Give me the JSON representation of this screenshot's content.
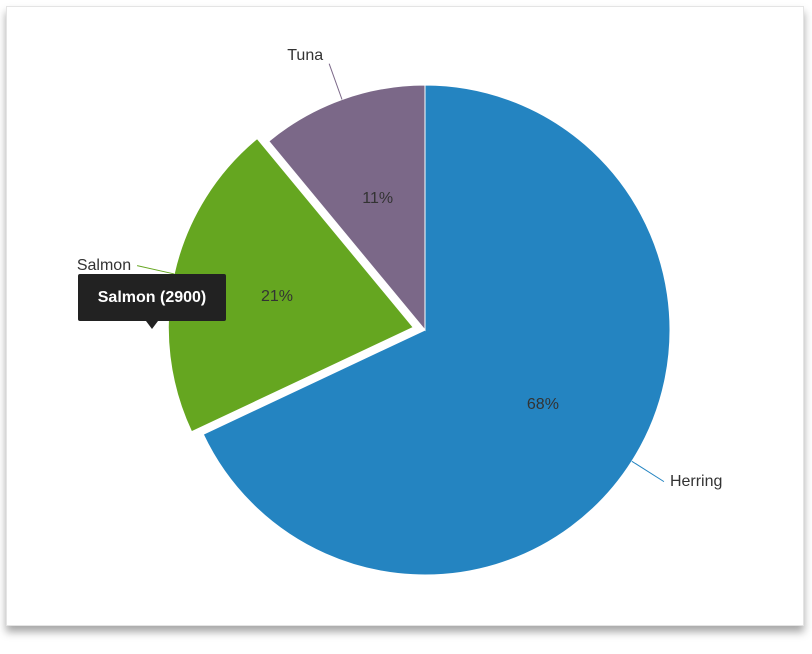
{
  "chart_data": {
    "type": "pie",
    "categories": [
      "Herring",
      "Salmon",
      "Tuna"
    ],
    "values": [
      68,
      21,
      11
    ],
    "value_labels": [
      "68%",
      "21%",
      "11%"
    ],
    "colors": [
      "#2484c1",
      "#65a620",
      "#7b6888"
    ],
    "tooltip": "Salmon (2900)"
  }
}
